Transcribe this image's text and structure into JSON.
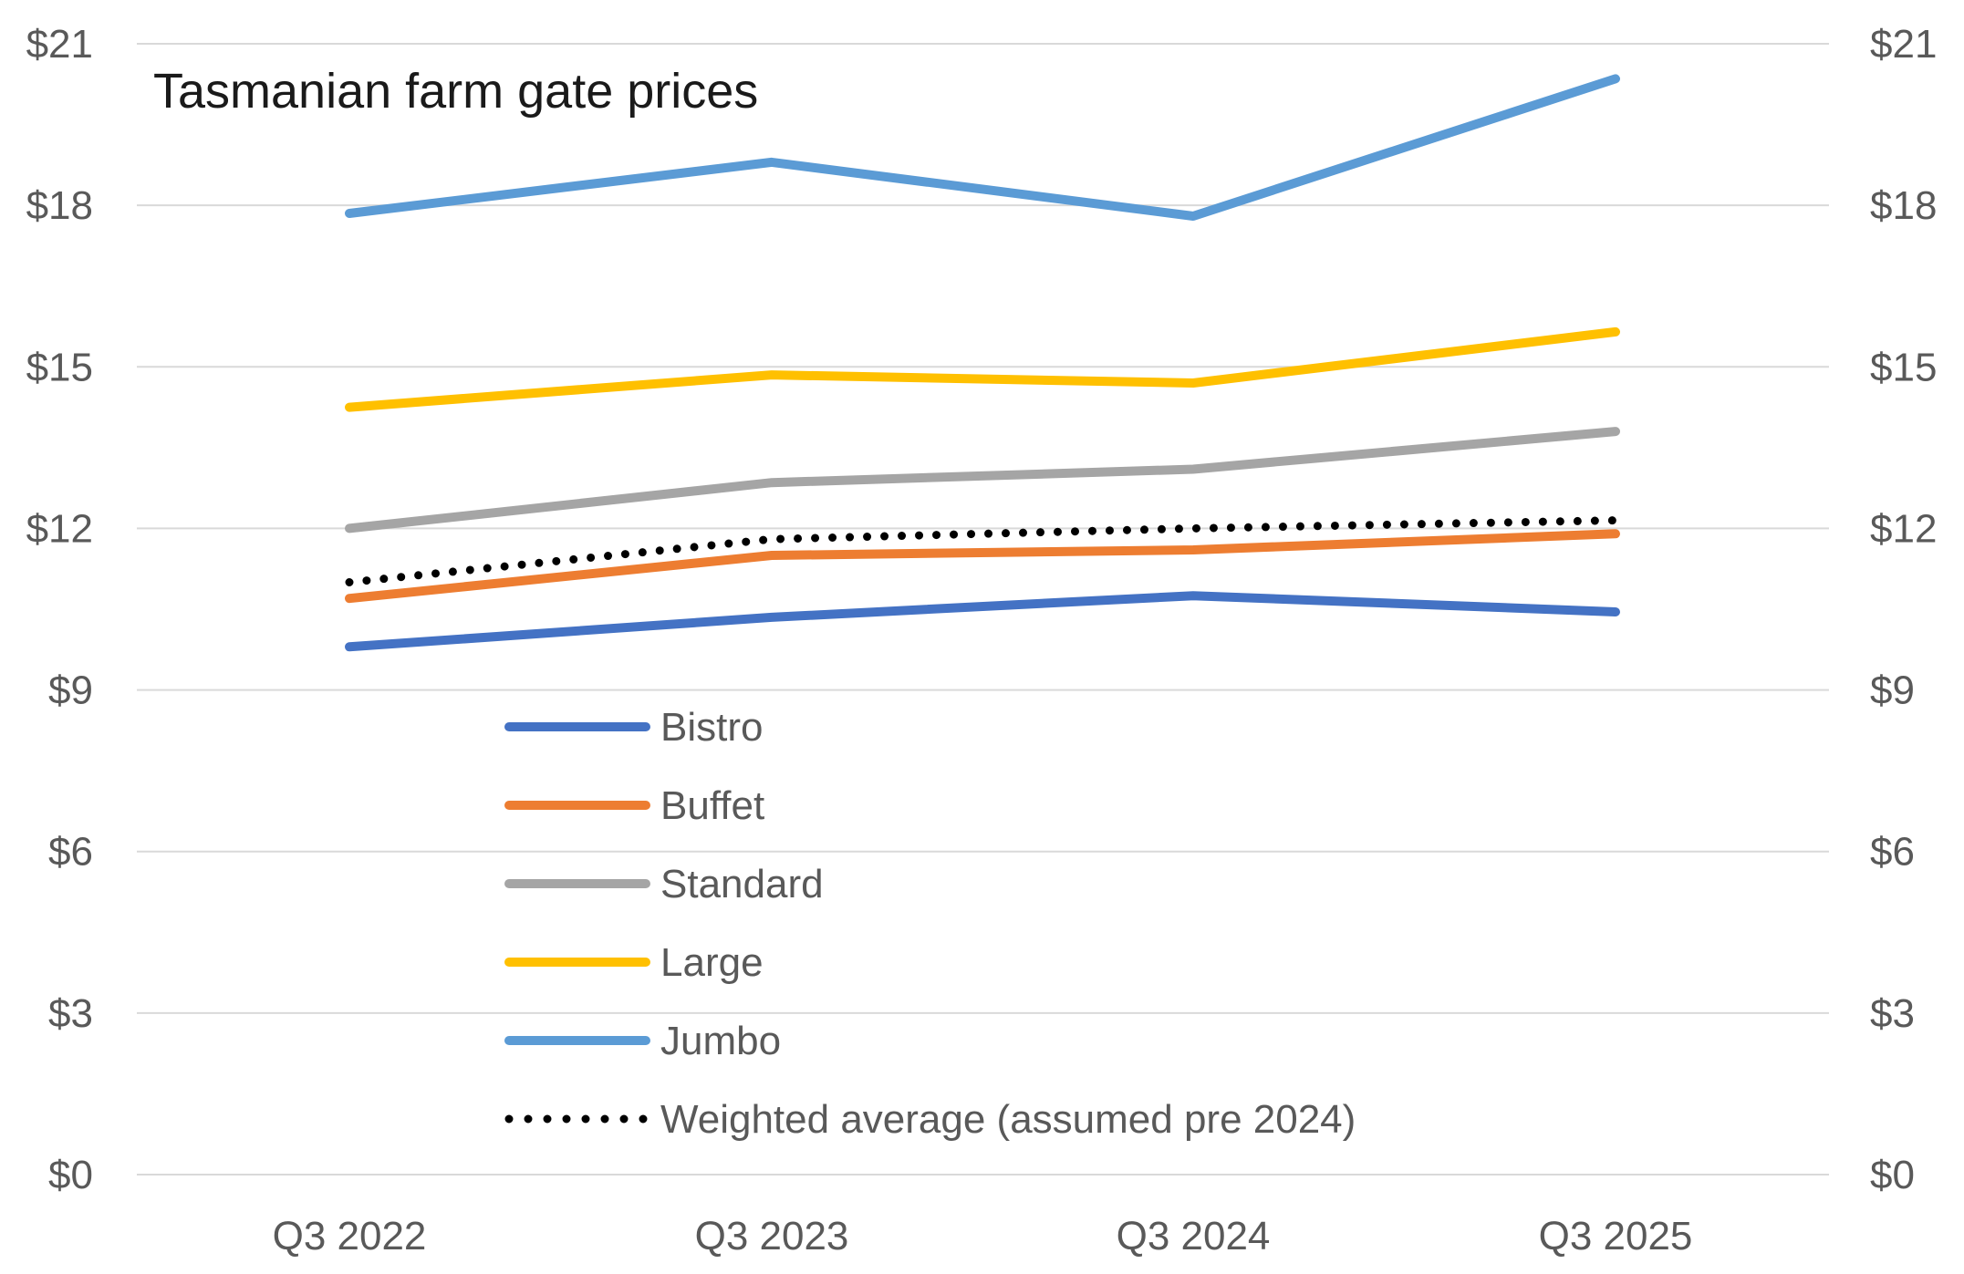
{
  "chart_data": {
    "type": "line",
    "title": "Tasmanian farm gate prices",
    "xlabel": "",
    "ylabel": "",
    "categories": [
      "Q3 2022",
      "Q3 2023",
      "Q3 2024",
      "Q3 2025"
    ],
    "ylim": [
      0,
      21
    ],
    "yticks": [
      0,
      3,
      6,
      9,
      12,
      15,
      18,
      21
    ],
    "ytick_labels": [
      "$0",
      "$3",
      "$6",
      "$9",
      "$12",
      "$15",
      "$18",
      "$21"
    ],
    "secondary_y_axis": true,
    "grid": "horizontal",
    "legend_position": "lower-left inside plot",
    "series": [
      {
        "name": "Bistro",
        "values": [
          9.8,
          10.35,
          10.75,
          10.45
        ],
        "color": "#4472c4",
        "style": "solid"
      },
      {
        "name": "Buffet",
        "values": [
          10.7,
          11.5,
          11.6,
          11.9
        ],
        "color": "#ed7d31",
        "style": "solid"
      },
      {
        "name": "Standard",
        "values": [
          12.0,
          12.85,
          13.1,
          13.8
        ],
        "color": "#a5a5a5",
        "style": "solid"
      },
      {
        "name": "Large",
        "values": [
          14.25,
          14.85,
          14.7,
          15.65
        ],
        "color": "#ffc000",
        "style": "solid"
      },
      {
        "name": "Jumbo",
        "values": [
          17.85,
          18.8,
          17.8,
          20.35
        ],
        "color": "#5b9bd5",
        "style": "solid"
      },
      {
        "name": "Weighted average (assumed pre 2024)",
        "values": [
          11.0,
          11.8,
          12.0,
          12.15
        ],
        "color": "#000000",
        "style": "dotted"
      }
    ]
  }
}
